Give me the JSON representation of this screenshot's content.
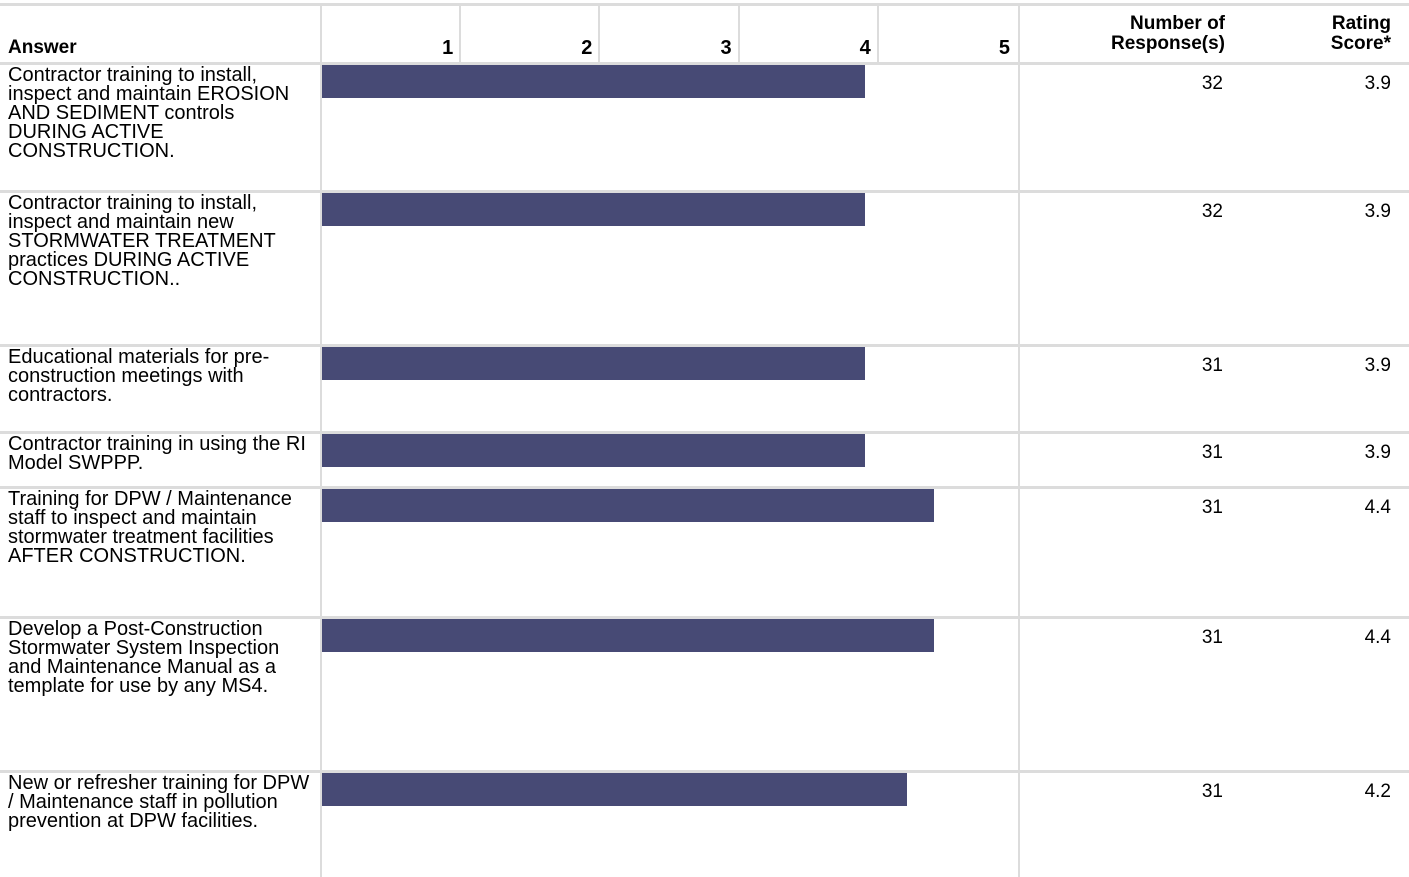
{
  "chart_data": {
    "type": "bar",
    "orientation": "horizontal",
    "scale": [
      1,
      2,
      3,
      4,
      5
    ],
    "xlim": [
      0,
      5
    ],
    "bar_color": "#474a75",
    "headers": {
      "answer": "Answer",
      "responses_line1": "Number of",
      "responses_line2": "Response(s)",
      "score_line1": "Rating",
      "score_line2": "Score*"
    },
    "rows": [
      {
        "answer": "Contractor training to install, inspect and maintain EROSION AND SEDIMENT controls DURING ACTIVE CONSTRUCTION.",
        "value": 3.9,
        "responses": "32",
        "score": "3.9"
      },
      {
        "answer": "Contractor training to install, inspect and maintain new STORMWATER TREATMENT practices DURING ACTIVE CONSTRUCTION..",
        "value": 3.9,
        "responses": "32",
        "score": "3.9"
      },
      {
        "answer": "Educational materials for pre-construction meetings with contractors.",
        "value": 3.9,
        "responses": "31",
        "score": "3.9"
      },
      {
        "answer": "Contractor training in  using the RI Model SWPPP.",
        "value": 3.9,
        "responses": "31",
        "score": "3.9"
      },
      {
        "answer": "Training for DPW / Maintenance staff to inspect and maintain stormwater treatment facilities AFTER CONSTRUCTION.",
        "value": 4.4,
        "responses": "31",
        "score": "4.4"
      },
      {
        "answer": "Develop a  Post-Construction Stormwater System Inspection and Maintenance Manual as a template for use by any MS4.",
        "value": 4.4,
        "responses": "31",
        "score": "4.4"
      },
      {
        "answer": "New or refresher training for DPW / Maintenance staff in pollution prevention at DPW facilities.",
        "value": 4.2,
        "responses": "31",
        "score": "4.2"
      }
    ]
  }
}
